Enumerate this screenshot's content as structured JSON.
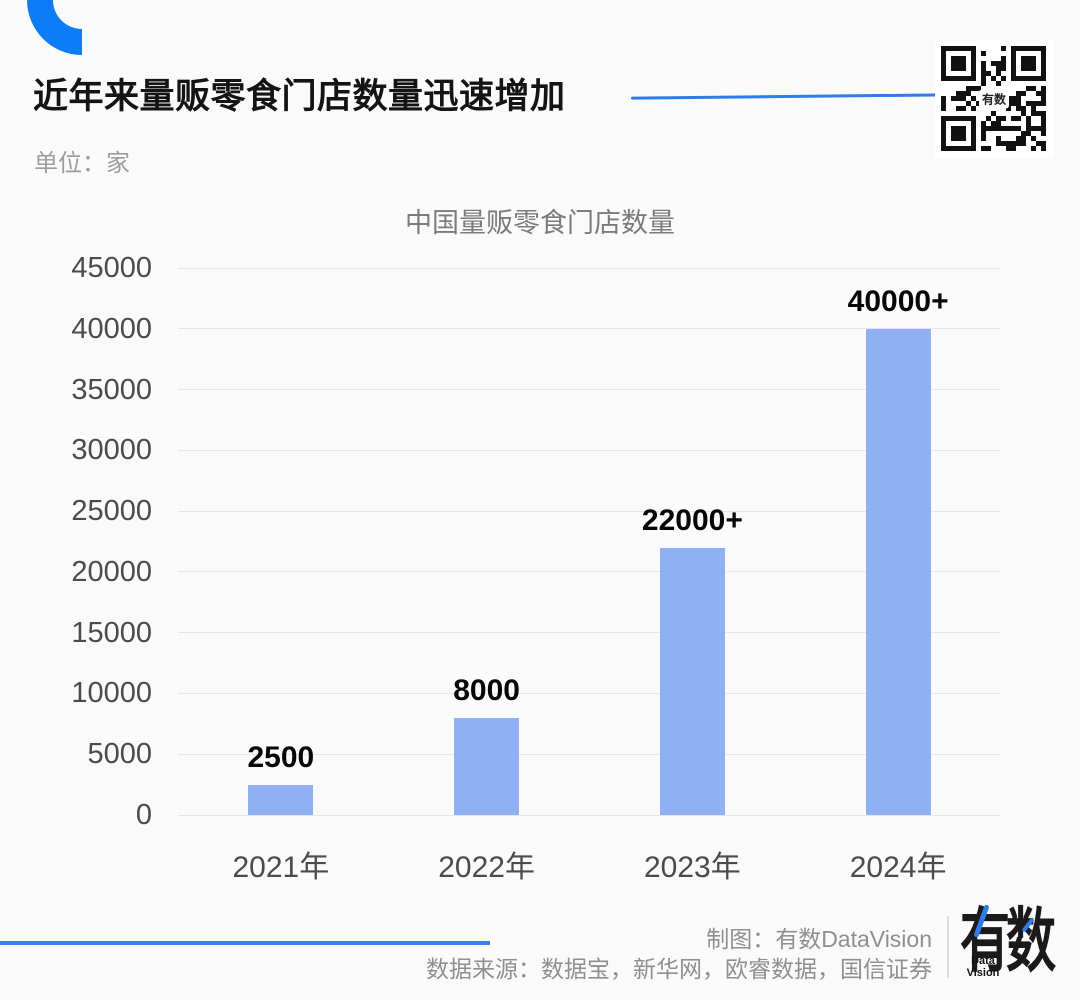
{
  "header": {
    "title": "近年来量贩零食门店数量迅速增加",
    "unit_label": "单位：家",
    "qr_center_label": "有数"
  },
  "chart_data": {
    "type": "bar",
    "title": "中国量贩零食门店数量",
    "categories": [
      "2021年",
      "2022年",
      "2023年",
      "2024年"
    ],
    "values": [
      2500,
      8000,
      22000,
      40000
    ],
    "value_labels": [
      "2500",
      "8000",
      "22000+",
      "40000+"
    ],
    "unit": "家",
    "ylim": [
      0,
      45000
    ],
    "ytick_step": 5000,
    "grid": true,
    "legend": "none",
    "bar_color": "#8fb0f4"
  },
  "footer": {
    "credit": "制图：有数DataVision",
    "source": "数据来源：数据宝，新华网，欧睿数据，国信证券",
    "logo_text": "有数",
    "logo_sub": [
      "Data",
      "Vision"
    ]
  },
  "colors": {
    "accent_blue": "#0d7cf6",
    "line_blue": "#2e7ce9",
    "footer_line_blue": "#3b7ff0",
    "bar_blue": "#8fb0f4",
    "background": "#fafafa",
    "gridline": "#e6e6e6",
    "axis_text": "#4b4b4b",
    "value_label_text": "#070707",
    "muted_text": "#9c9c9c",
    "chart_title_text": "#7b7b7b",
    "footer_text": "#8f8f8f"
  }
}
